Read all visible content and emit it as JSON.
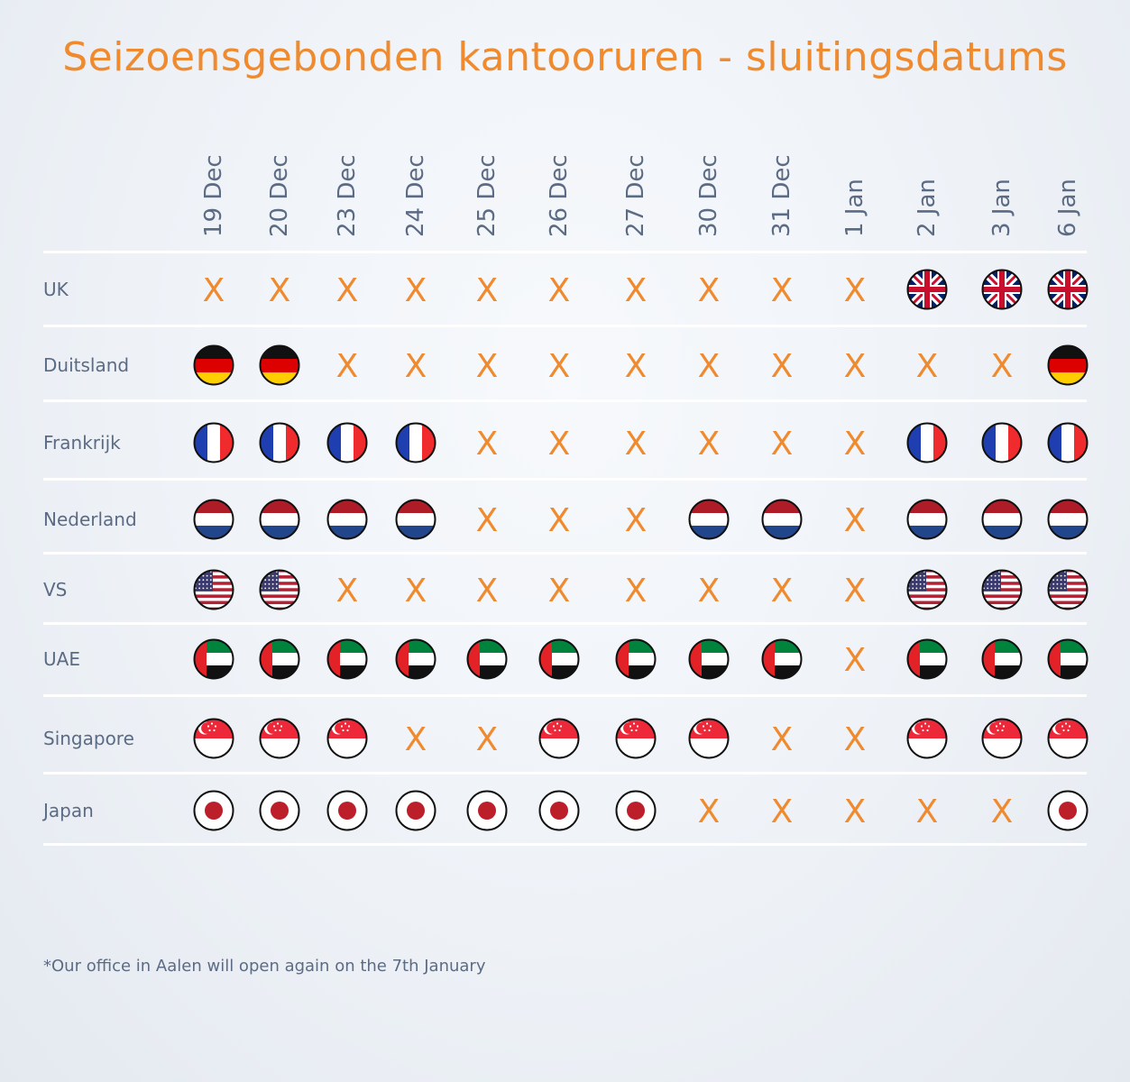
{
  "title": "Seizoensgebonden kantooruren - sluitingsdatums",
  "dates": [
    "19 Dec",
    "20 Dec",
    "23 Dec",
    "24 Dec",
    "25 Dec",
    "26 Dec",
    "27 Dec",
    "30 Dec",
    "31 Dec",
    "1 Jan",
    "2 Jan",
    "3 Jan",
    "6 Jan"
  ],
  "closed_symbol": "X",
  "rows": [
    {
      "country": "UK",
      "flag": "uk-flag-icon",
      "open": [
        0,
        0,
        0,
        0,
        0,
        0,
        0,
        0,
        0,
        0,
        1,
        1,
        1
      ]
    },
    {
      "country": "Duitsland",
      "flag": "germany-flag-icon",
      "open": [
        1,
        1,
        0,
        0,
        0,
        0,
        0,
        0,
        0,
        0,
        0,
        0,
        1
      ]
    },
    {
      "country": "Frankrijk",
      "flag": "france-flag-icon",
      "open": [
        1,
        1,
        1,
        1,
        0,
        0,
        0,
        0,
        0,
        0,
        1,
        1,
        1
      ]
    },
    {
      "country": "Nederland",
      "flag": "netherlands-flag-icon",
      "open": [
        1,
        1,
        1,
        1,
        0,
        0,
        0,
        1,
        1,
        0,
        1,
        1,
        1
      ]
    },
    {
      "country": "VS",
      "flag": "usa-flag-icon",
      "open": [
        1,
        1,
        0,
        0,
        0,
        0,
        0,
        0,
        0,
        0,
        1,
        1,
        1
      ]
    },
    {
      "country": "UAE",
      "flag": "uae-flag-icon",
      "open": [
        1,
        1,
        1,
        1,
        1,
        1,
        1,
        1,
        1,
        0,
        1,
        1,
        1
      ]
    },
    {
      "country": "Singapore",
      "flag": "singapore-flag-icon",
      "open": [
        1,
        1,
        1,
        0,
        0,
        1,
        1,
        1,
        0,
        0,
        1,
        1,
        1
      ]
    },
    {
      "country": "Japan",
      "flag": "japan-flag-icon",
      "open": [
        1,
        1,
        1,
        1,
        1,
        1,
        1,
        0,
        0,
        0,
        0,
        0,
        1
      ]
    }
  ],
  "colors": {
    "accent": "#ef8a2e",
    "text": "#5c6b84"
  },
  "footnote": "*Our office in Aalen will open again on the 7th January"
}
